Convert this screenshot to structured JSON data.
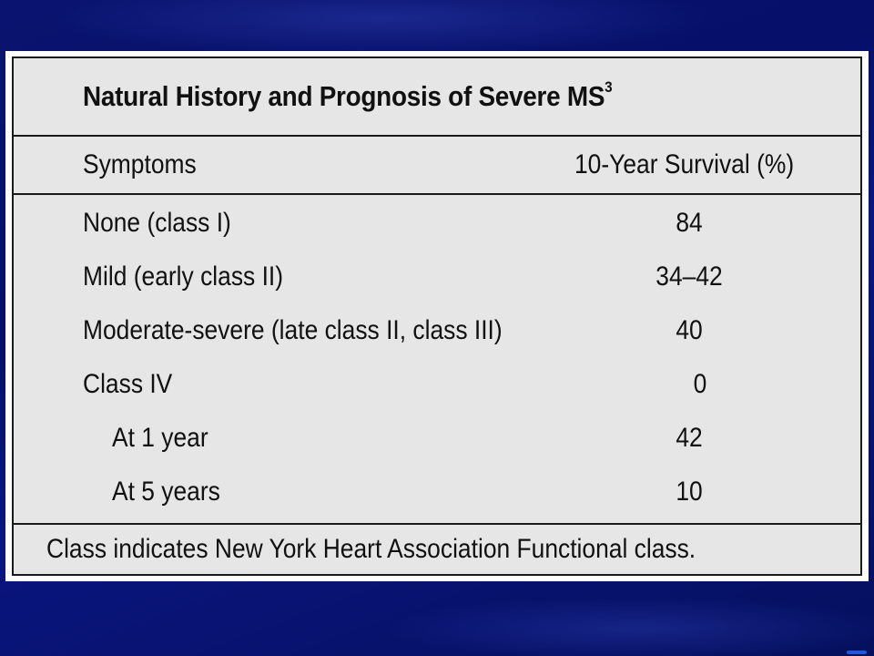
{
  "table": {
    "title": "Natural History and Prognosis of Severe MS",
    "title_superscript": "3",
    "columns": [
      "Symptoms",
      "10-Year Survival (%)"
    ],
    "rows": [
      {
        "symptoms": "None (class I)",
        "survival": "84",
        "indent": false
      },
      {
        "symptoms": "Mild (early class II)",
        "survival": "34–42",
        "indent": false
      },
      {
        "symptoms": "Moderate-severe (late class II, class III)",
        "survival": "40",
        "indent": false
      },
      {
        "symptoms": "Class IV",
        "survival": "0",
        "indent": false
      },
      {
        "symptoms": "At 1 year",
        "survival": "42",
        "indent": true
      },
      {
        "symptoms": "At 5 years",
        "survival": "10",
        "indent": true
      }
    ],
    "footnote": "Class indicates New York Heart Association Functional class."
  },
  "colors": {
    "slide_background": "#0a1470",
    "table_background": "#e6e6e6",
    "rule_color": "#1a1a1a"
  }
}
